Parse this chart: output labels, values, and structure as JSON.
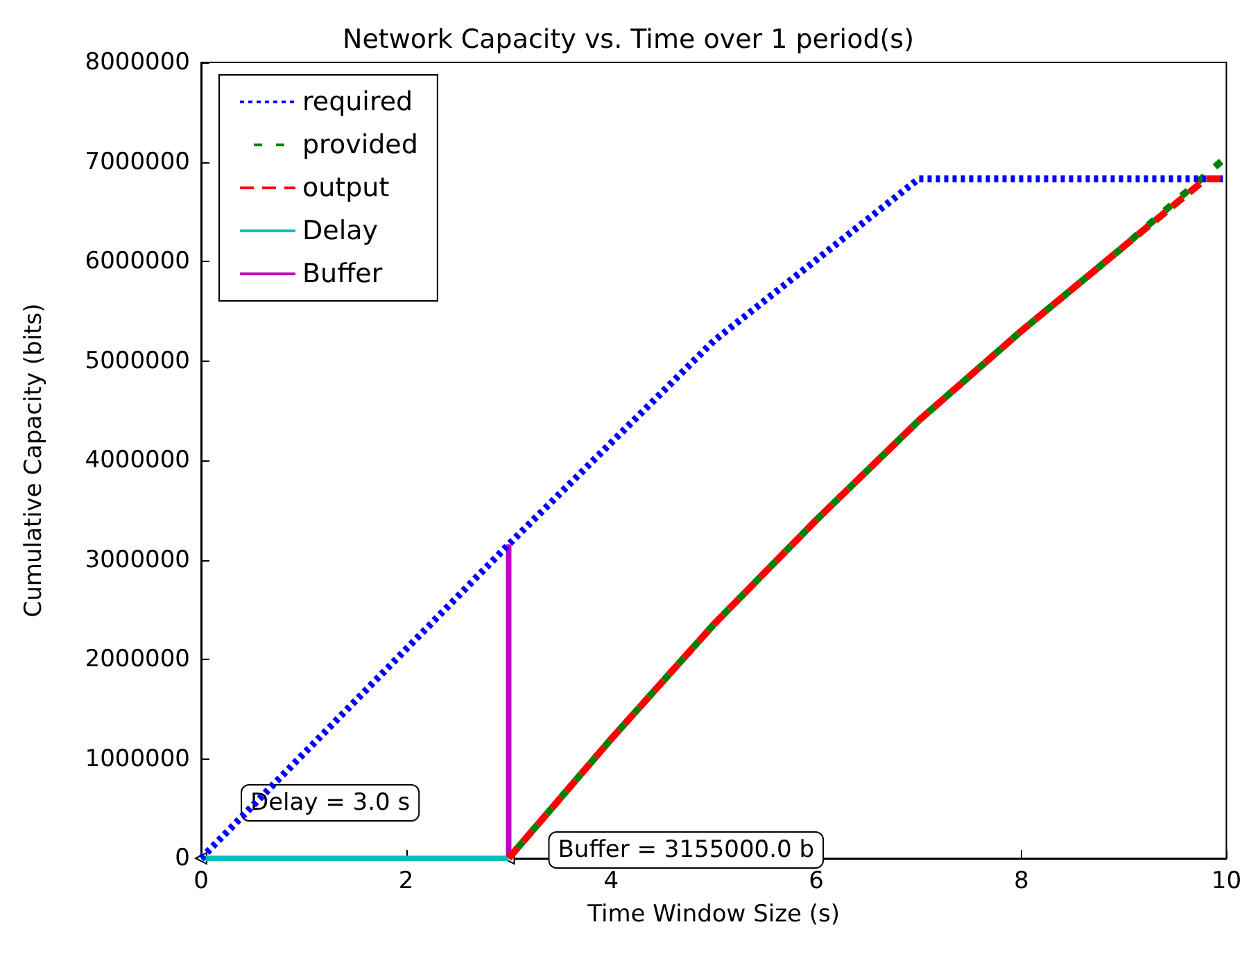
{
  "chart_data": {
    "type": "line",
    "title": "Network Capacity vs. Time over 1 period(s)",
    "xlabel": "Time Window Size (s)",
    "ylabel": "Cumulative Capacity (bits)",
    "xlim": [
      0,
      10
    ],
    "xticks": [
      0,
      2,
      4,
      6,
      8,
      10
    ],
    "ylim": [
      0,
      8000000
    ],
    "yticks": [
      0,
      1000000,
      2000000,
      3000000,
      4000000,
      5000000,
      6000000,
      7000000,
      8000000
    ],
    "grid": false,
    "legend": "top left",
    "marker": "none",
    "series": [
      {
        "name": "required",
        "color": "#0000ff",
        "line_style": "dotted",
        "x": [
          0,
          3,
          5,
          7,
          10
        ],
        "values": [
          0,
          3155000,
          5200000,
          6830000,
          6830000
        ]
      },
      {
        "name": "provided",
        "color": "#008000",
        "line_style": "dashed",
        "x": [
          3,
          4,
          5,
          6,
          7,
          8,
          9,
          10
        ],
        "values": [
          0,
          1200000,
          2350000,
          3400000,
          4400000,
          5300000,
          6150000,
          7050000
        ]
      },
      {
        "name": "output",
        "color": "#ff0000",
        "line_style": "dashed",
        "x": [
          3,
          4,
          5,
          6,
          7,
          8,
          9,
          9.8,
          10
        ],
        "values": [
          0,
          1200000,
          2350000,
          3400000,
          4400000,
          5300000,
          6150000,
          6830000,
          6830000
        ]
      },
      {
        "name": "Delay",
        "color": "#00bfbf",
        "line_style": "solid",
        "x": [
          0,
          3
        ],
        "values": [
          0,
          0
        ]
      },
      {
        "name": "Buffer",
        "color": "#bf00bf",
        "line_style": "solid",
        "x": [
          3,
          3
        ],
        "values": [
          0,
          3155000
        ]
      }
    ],
    "annotations": [
      {
        "text": "Delay = 3.0 s",
        "x": 0,
        "y": 0
      },
      {
        "text": "Buffer = 3155000.0 b",
        "x": 3,
        "y": 0
      }
    ]
  }
}
